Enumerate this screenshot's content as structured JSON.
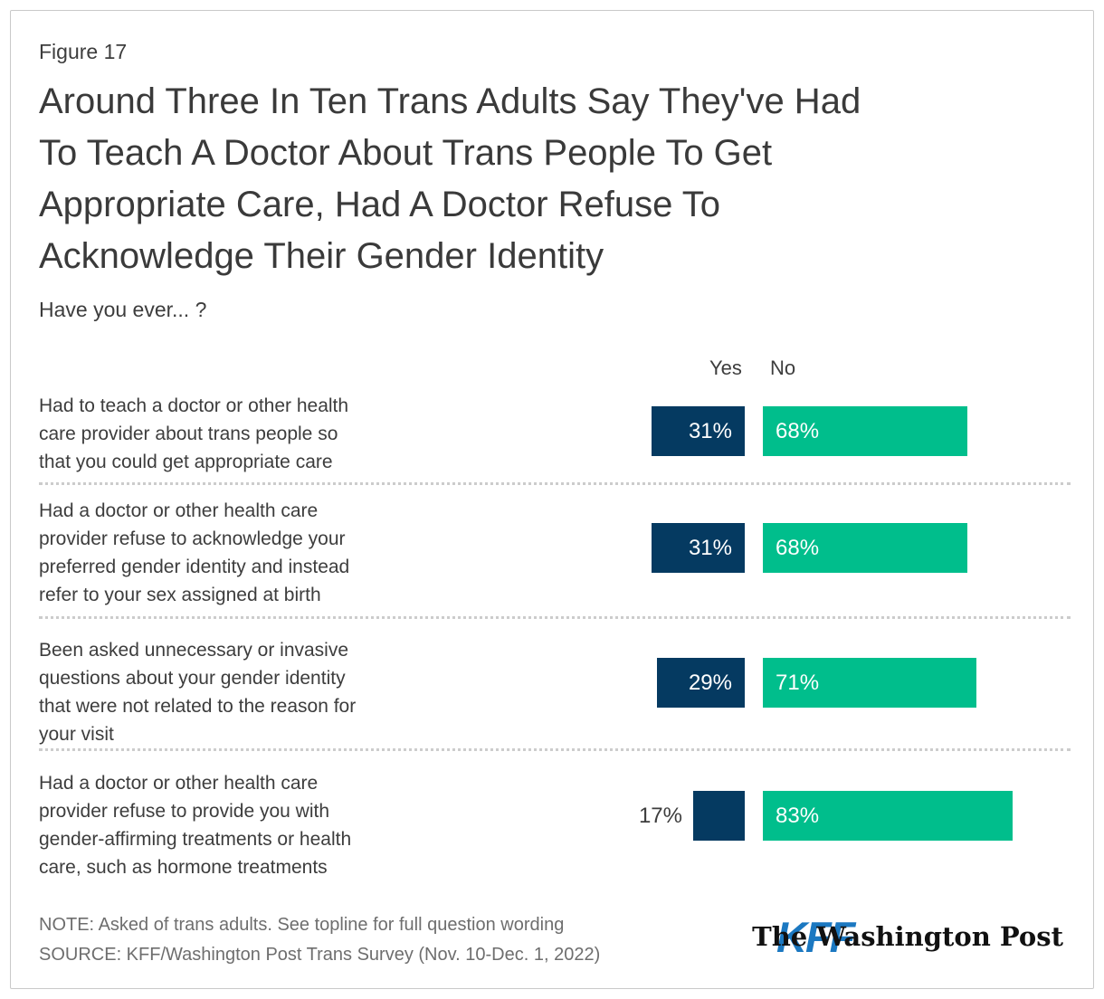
{
  "figure_label": "Figure 17",
  "title_lines": [
    "Around Three In Ten Trans Adults Say They've Had",
    "To Teach A Doctor About Trans People To Get",
    "Appropriate Care, Had A Doctor Refuse To",
    "Acknowledge Their Gender Identity"
  ],
  "subtitle": "Have you ever... ?",
  "chart_data": {
    "type": "bar",
    "orientation": "horizontal",
    "legend_position": "top",
    "series_names": [
      "Yes",
      "No"
    ],
    "colors": {
      "yes": "#053A61",
      "no": "#00BE8C"
    },
    "rows": [
      {
        "label_lines": [
          "Had to teach a doctor or other health",
          "care provider about trans people so",
          "that you could get appropriate care"
        ],
        "yes": 31,
        "no": 68,
        "yes_label": "31%",
        "no_label": "68%",
        "yes_label_outside": false
      },
      {
        "label_lines": [
          "Had a doctor or other health care",
          "provider refuse to acknowledge your",
          "preferred gender identity and instead",
          "refer to your sex assigned at birth"
        ],
        "yes": 31,
        "no": 68,
        "yes_label": "31%",
        "no_label": "68%",
        "yes_label_outside": false
      },
      {
        "label_lines": [
          "Been asked unnecessary or invasive",
          "questions about your gender identity",
          "that were not related to the reason for",
          "your visit"
        ],
        "yes": 29,
        "no": 71,
        "yes_label": "29%",
        "no_label": "71%",
        "yes_label_outside": false
      },
      {
        "label_lines": [
          "Had a doctor or other health care",
          "provider refuse to provide you with",
          "gender-affirming treatments or health",
          "care, such as hormone treatments"
        ],
        "yes": 17,
        "no": 83,
        "yes_label": "17%",
        "no_label": "83%",
        "yes_label_outside": true
      }
    ]
  },
  "footer": {
    "note_lines": [
      "NOTE: Asked of trans adults. See topline for full question wording",
      "SOURCE: KFF/Washington Post Trans Survey (Nov. 10-Dec. 1, 2022)"
    ],
    "kff_logo_text": "KFF",
    "wapo_logo_text": "The Washington Post"
  }
}
